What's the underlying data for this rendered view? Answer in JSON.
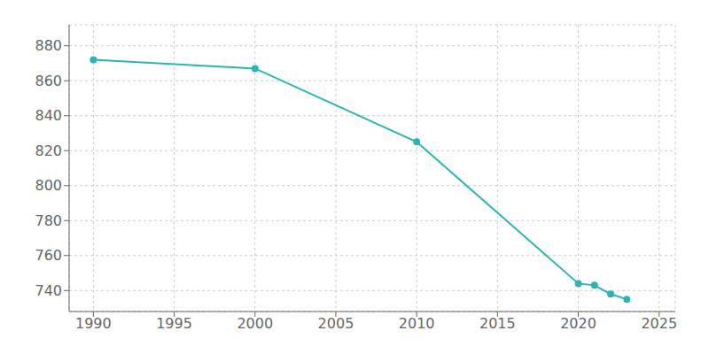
{
  "chart_data": {
    "type": "line",
    "x": [
      1990,
      2000,
      2010,
      2020,
      2021,
      2022,
      2023
    ],
    "values": [
      872,
      867,
      825,
      744,
      743,
      738,
      735
    ],
    "color": "#2ab5b5",
    "marker": "circle",
    "xlim": [
      1988.5,
      2026
    ],
    "ylim": [
      728,
      892
    ],
    "xticks": [
      1990,
      1995,
      2000,
      2005,
      2010,
      2015,
      2020,
      2025
    ],
    "yticks": [
      740,
      760,
      780,
      800,
      820,
      840,
      860,
      880
    ],
    "grid": true
  }
}
